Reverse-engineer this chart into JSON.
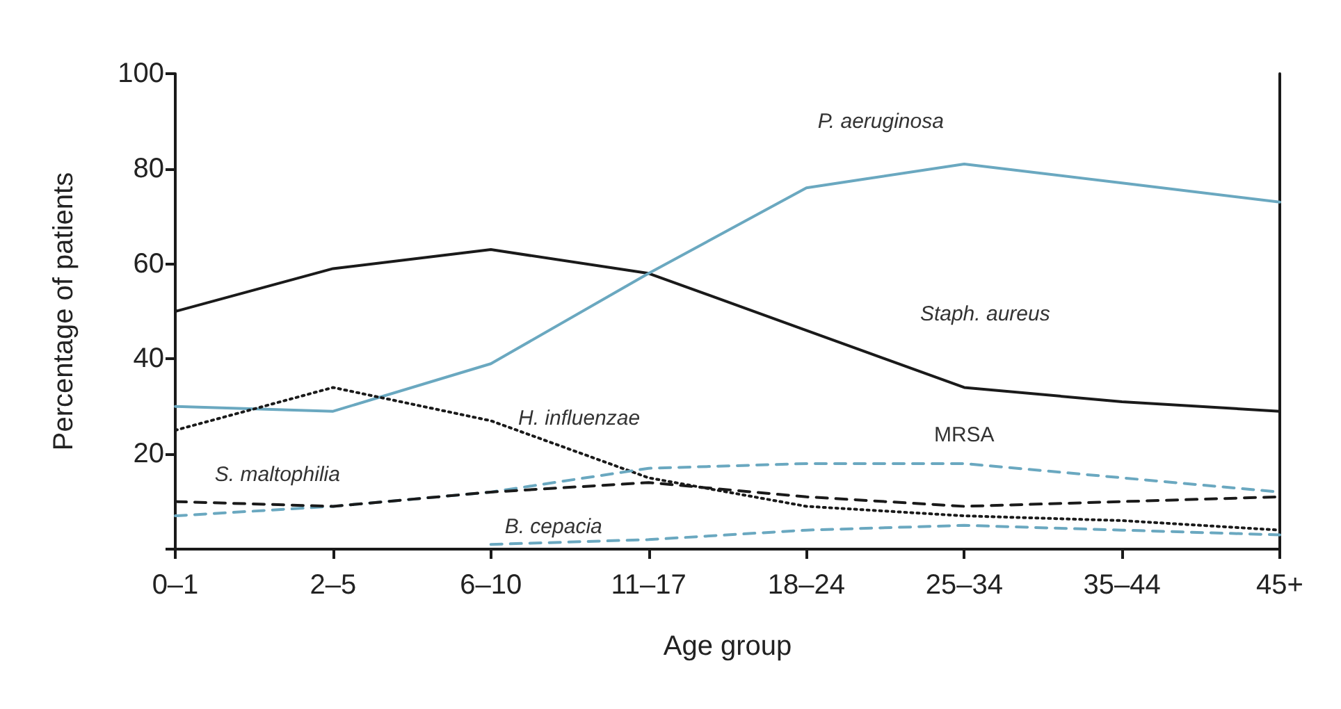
{
  "chart_data": {
    "type": "line",
    "xlabel": "Age group",
    "ylabel": "Percentage of patients",
    "categories": [
      "0–1",
      "2–5",
      "6–10",
      "11–17",
      "18–24",
      "25–34",
      "35–44",
      "45+"
    ],
    "ylim": [
      0,
      100
    ],
    "yticks": [
      {
        "value": 0,
        "label": null
      },
      20,
      40,
      60,
      80,
      100
    ],
    "grid": false,
    "legend": false,
    "marker": "none",
    "series": [
      {
        "name": "Staph. aureus",
        "color": "#1a1a1a",
        "line_style": "solid",
        "values": [
          50,
          59,
          63,
          58,
          46,
          34,
          31,
          29
        ]
      },
      {
        "name": "P. aeruginosa",
        "color": "#6aa8c0",
        "line_style": "solid",
        "values": [
          30,
          29,
          39,
          58,
          76,
          81,
          77,
          73
        ]
      },
      {
        "name": "H. influenzae",
        "color": "#1a1a1a",
        "line_style": "dotted",
        "values": [
          25,
          34,
          27,
          15,
          9,
          7,
          6,
          4
        ]
      },
      {
        "name": "MRSA",
        "color": "#6aa8c0",
        "line_style": "dashed",
        "values": [
          7,
          9,
          12,
          17,
          18,
          18,
          15,
          12
        ]
      },
      {
        "name": "S. maltophilia",
        "color": "#1a1a1a",
        "line_style": "dashed",
        "values": [
          10,
          9,
          12,
          14,
          11,
          9,
          10,
          11
        ]
      },
      {
        "name": "B. cepacia",
        "color": "#6aa8c0",
        "line_style": "dashed",
        "values": [
          null,
          null,
          1,
          2,
          4,
          5,
          4,
          3
        ]
      }
    ]
  }
}
